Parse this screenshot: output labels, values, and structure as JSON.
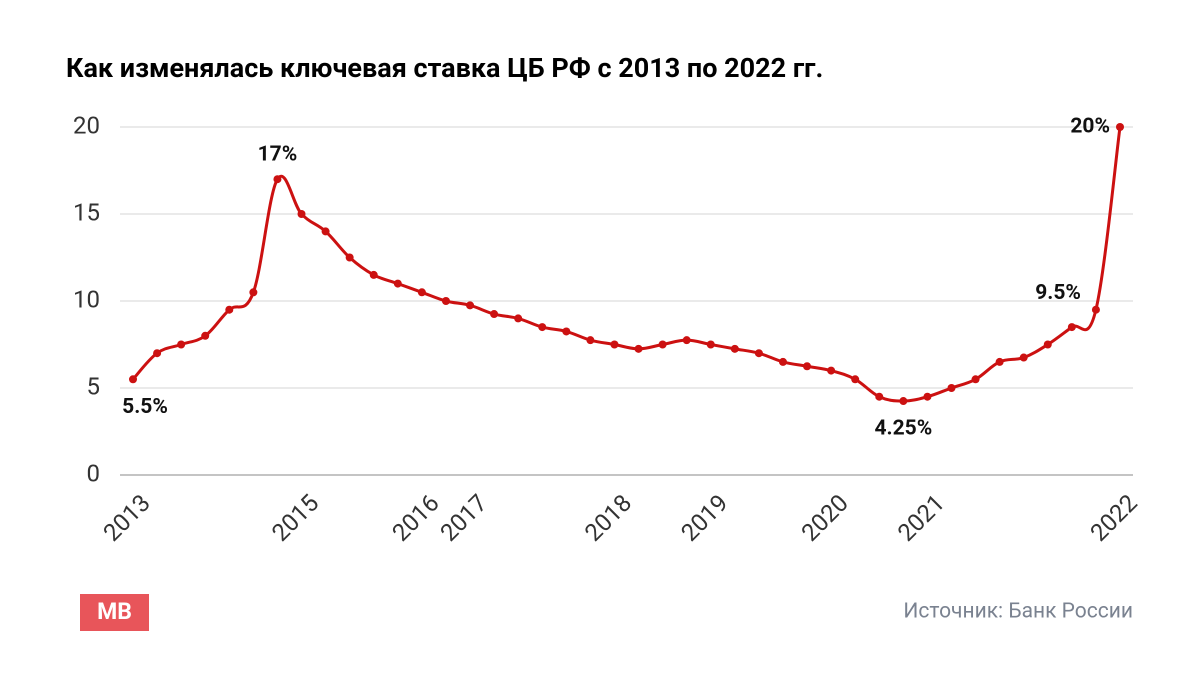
{
  "chart_data": {
    "type": "line",
    "title": "Как изменялась ключевая ставка ЦБ РФ с 2013 по 2022 гг.",
    "categories": [
      "2013",
      null,
      null,
      null,
      null,
      null,
      null,
      "2015",
      null,
      null,
      null,
      null,
      "2016",
      null,
      "2017",
      null,
      null,
      null,
      null,
      null,
      "2018",
      null,
      null,
      null,
      "2019",
      null,
      null,
      null,
      null,
      "2020",
      null,
      null,
      null,
      "2021",
      null,
      null,
      null,
      null,
      null,
      null,
      null,
      "2022"
    ],
    "series": [
      {
        "name": "Ключевая ставка",
        "color": "#cc1111",
        "values": [
          5.5,
          7,
          7.5,
          8,
          9.5,
          10.5,
          17,
          15,
          14,
          12.5,
          11.5,
          11,
          10.5,
          10,
          9.75,
          9.25,
          9,
          8.5,
          8.25,
          7.75,
          7.5,
          7.25,
          7.5,
          7.75,
          7.5,
          7.25,
          7,
          6.5,
          6.25,
          6,
          5.5,
          4.5,
          4.25,
          4.5,
          5,
          5.5,
          6.5,
          6.75,
          7.5,
          8.5,
          9.5,
          20
        ],
        "value_labels": [
          "5.5%",
          null,
          null,
          null,
          null,
          null,
          "17%",
          null,
          null,
          null,
          null,
          null,
          null,
          null,
          null,
          null,
          null,
          null,
          null,
          null,
          null,
          null,
          null,
          null,
          null,
          null,
          null,
          null,
          null,
          null,
          null,
          null,
          "4.25%",
          null,
          null,
          null,
          null,
          null,
          null,
          null,
          "9.5%",
          "20%"
        ]
      }
    ],
    "ylim": [
      0,
      20
    ],
    "yticks": [
      0,
      5,
      10,
      15,
      20
    ],
    "grid": true,
    "logo": "MB",
    "source": "Источник: Банк России"
  }
}
